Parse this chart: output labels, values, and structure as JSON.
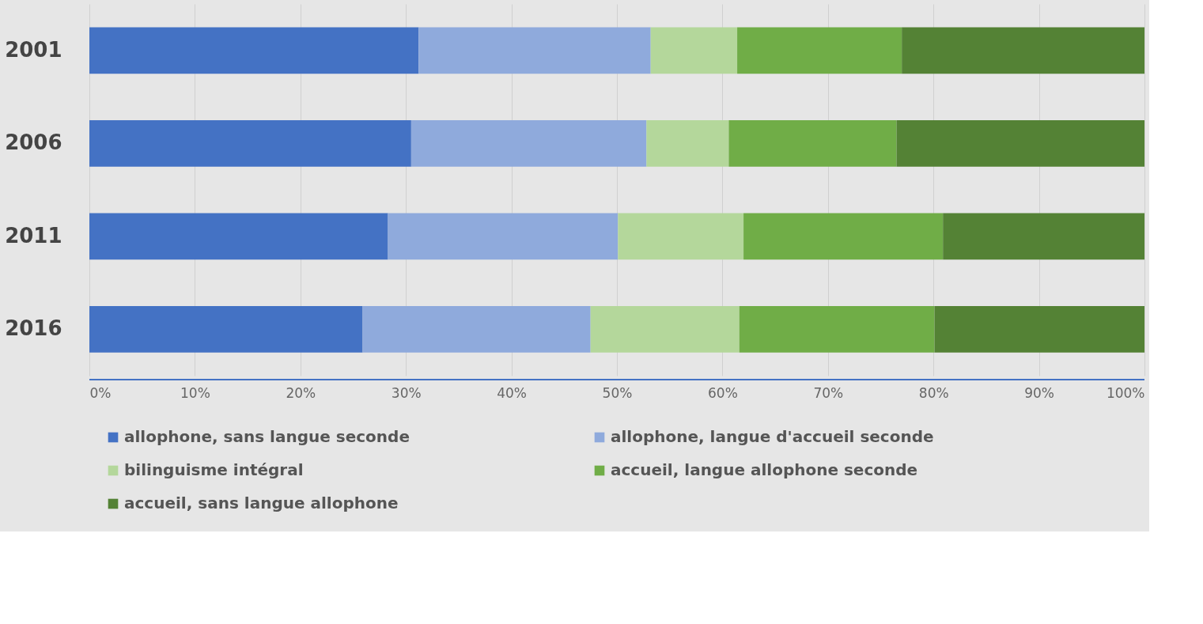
{
  "chart_data": {
    "type": "bar",
    "orientation": "horizontal",
    "stacked": true,
    "categories": [
      "2001",
      "2006",
      "2011",
      "2016"
    ],
    "series": [
      {
        "name": "allophone, sans langue seconde",
        "color": "#4472c4",
        "values": [
          31.2,
          30.5,
          28.3,
          25.9
        ]
      },
      {
        "name": "allophone, langue d'accueil seconde",
        "color": "#8faadc",
        "values": [
          22.0,
          22.3,
          21.8,
          21.6
        ]
      },
      {
        "name": "bilinguisme intégral",
        "color": "#b4d79b",
        "values": [
          8.2,
          7.8,
          11.9,
          14.1
        ]
      },
      {
        "name": "accueil, langue allophone seconde",
        "color": "#70ad47",
        "values": [
          15.6,
          15.9,
          18.9,
          18.5
        ]
      },
      {
        "name": "accueil, sans langue allophone",
        "color": "#548235",
        "values": [
          23.0,
          23.5,
          19.1,
          19.9
        ]
      }
    ],
    "xlim": [
      0,
      100
    ],
    "xticks": [
      {
        "value": 0,
        "label": "0%"
      },
      {
        "value": 10,
        "label": "10%"
      },
      {
        "value": 20,
        "label": "20%"
      },
      {
        "value": 30,
        "label": "30%"
      },
      {
        "value": 40,
        "label": "40%"
      },
      {
        "value": 50,
        "label": "50%"
      },
      {
        "value": 60,
        "label": "60%"
      },
      {
        "value": 70,
        "label": "70%"
      },
      {
        "value": 80,
        "label": "80%"
      },
      {
        "value": 90,
        "label": "90%"
      },
      {
        "value": 100,
        "label": "100%"
      }
    ],
    "grid": "x",
    "legend": "bottom"
  }
}
